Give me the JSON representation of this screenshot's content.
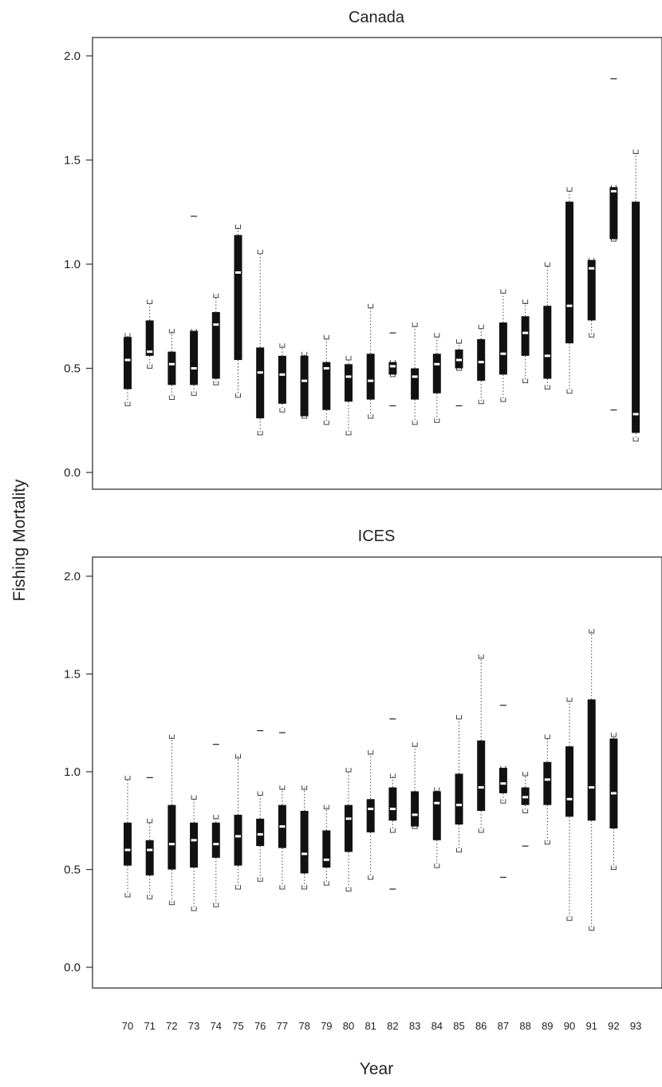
{
  "figure": {
    "ylabel": "Fishing Mortality",
    "xlabel": "Year",
    "colors": {
      "box": "#111111",
      "whisker": "#444444",
      "median": "#ffffff",
      "axis": "#333333"
    }
  },
  "chart_data": [
    {
      "type": "boxplot",
      "title": "Canada",
      "ylim": [
        0.0,
        2.0
      ],
      "yticks": [
        "0.0",
        "0.5",
        "1.0",
        "1.5",
        "2.0"
      ],
      "categories": [
        "70",
        "71",
        "72",
        "73",
        "74",
        "75",
        "76",
        "77",
        "78",
        "79",
        "80",
        "81",
        "82",
        "83",
        "84",
        "85",
        "86",
        "87",
        "88",
        "89",
        "90",
        "91",
        "92",
        "93"
      ],
      "boxes": [
        {
          "x": "70",
          "low": 0.33,
          "q1": 0.4,
          "median": 0.54,
          "q3": 0.65,
          "high": 0.66
        },
        {
          "x": "71",
          "low": 0.51,
          "q1": 0.56,
          "median": 0.58,
          "q3": 0.73,
          "high": 0.82
        },
        {
          "x": "72",
          "low": 0.36,
          "q1": 0.42,
          "median": 0.52,
          "q3": 0.58,
          "high": 0.68
        },
        {
          "x": "73",
          "low": 0.38,
          "q1": 0.42,
          "median": 0.5,
          "q3": 0.68,
          "high": 0.68,
          "outliers": [
            1.23
          ]
        },
        {
          "x": "74",
          "low": 0.43,
          "q1": 0.45,
          "median": 0.71,
          "q3": 0.77,
          "high": 0.85
        },
        {
          "x": "75",
          "low": 0.37,
          "q1": 0.54,
          "median": 0.96,
          "q3": 1.14,
          "high": 1.18
        },
        {
          "x": "76",
          "low": 0.19,
          "q1": 0.26,
          "median": 0.48,
          "q3": 0.6,
          "high": 1.06
        },
        {
          "x": "77",
          "low": 0.3,
          "q1": 0.33,
          "median": 0.47,
          "q3": 0.56,
          "high": 0.61
        },
        {
          "x": "78",
          "low": 0.27,
          "q1": 0.27,
          "median": 0.44,
          "q3": 0.56,
          "high": 0.57
        },
        {
          "x": "79",
          "low": 0.24,
          "q1": 0.3,
          "median": 0.5,
          "q3": 0.53,
          "high": 0.65
        },
        {
          "x": "80",
          "low": 0.19,
          "q1": 0.34,
          "median": 0.46,
          "q3": 0.52,
          "high": 0.55
        },
        {
          "x": "81",
          "low": 0.27,
          "q1": 0.35,
          "median": 0.44,
          "q3": 0.57,
          "high": 0.8
        },
        {
          "x": "82",
          "low": 0.47,
          "q1": 0.47,
          "median": 0.51,
          "q3": 0.53,
          "high": 0.53,
          "outliers": [
            0.67,
            0.32
          ]
        },
        {
          "x": "83",
          "low": 0.24,
          "q1": 0.35,
          "median": 0.46,
          "q3": 0.5,
          "high": 0.71
        },
        {
          "x": "84",
          "low": 0.25,
          "q1": 0.38,
          "median": 0.52,
          "q3": 0.57,
          "high": 0.66
        },
        {
          "x": "85",
          "low": 0.5,
          "q1": 0.5,
          "median": 0.54,
          "q3": 0.59,
          "high": 0.63,
          "outliers": [
            0.32
          ]
        },
        {
          "x": "86",
          "low": 0.34,
          "q1": 0.44,
          "median": 0.53,
          "q3": 0.64,
          "high": 0.7
        },
        {
          "x": "87",
          "low": 0.35,
          "q1": 0.47,
          "median": 0.57,
          "q3": 0.72,
          "high": 0.87
        },
        {
          "x": "88",
          "low": 0.44,
          "q1": 0.56,
          "median": 0.67,
          "q3": 0.75,
          "high": 0.82
        },
        {
          "x": "89",
          "low": 0.41,
          "q1": 0.45,
          "median": 0.56,
          "q3": 0.8,
          "high": 1.0
        },
        {
          "x": "90",
          "low": 0.39,
          "q1": 0.62,
          "median": 0.8,
          "q3": 1.3,
          "high": 1.36
        },
        {
          "x": "91",
          "low": 0.66,
          "q1": 0.73,
          "median": 0.98,
          "q3": 1.02,
          "high": 1.02
        },
        {
          "x": "92",
          "low": 1.12,
          "q1": 1.12,
          "median": 1.35,
          "q3": 1.37,
          "high": 1.37,
          "outliers": [
            1.89,
            0.3
          ]
        },
        {
          "x": "93",
          "low": 0.16,
          "q1": 0.19,
          "median": 0.28,
          "q3": 1.3,
          "high": 1.54
        }
      ]
    },
    {
      "type": "boxplot",
      "title": "ICES",
      "ylim": [
        0.0,
        2.0
      ],
      "yticks": [
        "0.0",
        "0.5",
        "1.0",
        "1.5",
        "2.0"
      ],
      "categories": [
        "70",
        "71",
        "72",
        "73",
        "74",
        "75",
        "76",
        "77",
        "78",
        "79",
        "80",
        "81",
        "82",
        "83",
        "84",
        "85",
        "86",
        "87",
        "88",
        "89",
        "90",
        "91",
        "92",
        "93"
      ],
      "boxes": [
        {
          "x": "70",
          "low": 0.37,
          "q1": 0.52,
          "median": 0.6,
          "q3": 0.74,
          "high": 0.97
        },
        {
          "x": "71",
          "low": 0.36,
          "q1": 0.47,
          "median": 0.6,
          "q3": 0.65,
          "high": 0.75,
          "outliers": [
            0.97
          ]
        },
        {
          "x": "72",
          "low": 0.33,
          "q1": 0.5,
          "median": 0.63,
          "q3": 0.83,
          "high": 1.18
        },
        {
          "x": "73",
          "low": 0.3,
          "q1": 0.51,
          "median": 0.65,
          "q3": 0.74,
          "high": 0.87
        },
        {
          "x": "74",
          "low": 0.32,
          "q1": 0.56,
          "median": 0.63,
          "q3": 0.74,
          "high": 0.77,
          "outliers": [
            1.14
          ]
        },
        {
          "x": "75",
          "low": 0.41,
          "q1": 0.52,
          "median": 0.67,
          "q3": 0.78,
          "high": 1.08
        },
        {
          "x": "76",
          "low": 0.45,
          "q1": 0.62,
          "median": 0.68,
          "q3": 0.76,
          "high": 0.89,
          "outliers": [
            1.21
          ]
        },
        {
          "x": "77",
          "low": 0.41,
          "q1": 0.61,
          "median": 0.72,
          "q3": 0.83,
          "high": 0.92,
          "outliers": [
            1.2
          ]
        },
        {
          "x": "78",
          "low": 0.41,
          "q1": 0.48,
          "median": 0.58,
          "q3": 0.8,
          "high": 0.92
        },
        {
          "x": "79",
          "low": 0.43,
          "q1": 0.51,
          "median": 0.55,
          "q3": 0.7,
          "high": 0.82
        },
        {
          "x": "80",
          "low": 0.4,
          "q1": 0.59,
          "median": 0.76,
          "q3": 0.83,
          "high": 1.01
        },
        {
          "x": "81",
          "low": 0.46,
          "q1": 0.69,
          "median": 0.81,
          "q3": 0.86,
          "high": 1.1
        },
        {
          "x": "82",
          "low": 0.7,
          "q1": 0.75,
          "median": 0.81,
          "q3": 0.92,
          "high": 0.98,
          "outliers": [
            1.27,
            0.4
          ]
        },
        {
          "x": "83",
          "low": 0.72,
          "q1": 0.72,
          "median": 0.78,
          "q3": 0.9,
          "high": 1.14
        },
        {
          "x": "84",
          "low": 0.52,
          "q1": 0.65,
          "median": 0.84,
          "q3": 0.9,
          "high": 0.91
        },
        {
          "x": "85",
          "low": 0.6,
          "q1": 0.73,
          "median": 0.83,
          "q3": 0.99,
          "high": 1.28
        },
        {
          "x": "86",
          "low": 0.7,
          "q1": 0.8,
          "median": 0.92,
          "q3": 1.16,
          "high": 1.59
        },
        {
          "x": "87",
          "low": 0.85,
          "q1": 0.89,
          "median": 0.94,
          "q3": 1.02,
          "high": 1.02,
          "outliers": [
            1.34,
            0.46
          ]
        },
        {
          "x": "88",
          "low": 0.8,
          "q1": 0.83,
          "median": 0.87,
          "q3": 0.92,
          "high": 0.99,
          "outliers": [
            0.62
          ]
        },
        {
          "x": "89",
          "low": 0.64,
          "q1": 0.83,
          "median": 0.96,
          "q3": 1.05,
          "high": 1.18
        },
        {
          "x": "90",
          "low": 0.25,
          "q1": 0.77,
          "median": 0.86,
          "q3": 1.13,
          "high": 1.37
        },
        {
          "x": "91",
          "low": 0.2,
          "q1": 0.75,
          "median": 0.92,
          "q3": 1.37,
          "high": 1.72
        },
        {
          "x": "92",
          "low": 0.51,
          "q1": 0.71,
          "median": 0.89,
          "q3": 1.17,
          "high": 1.19
        }
      ]
    }
  ]
}
